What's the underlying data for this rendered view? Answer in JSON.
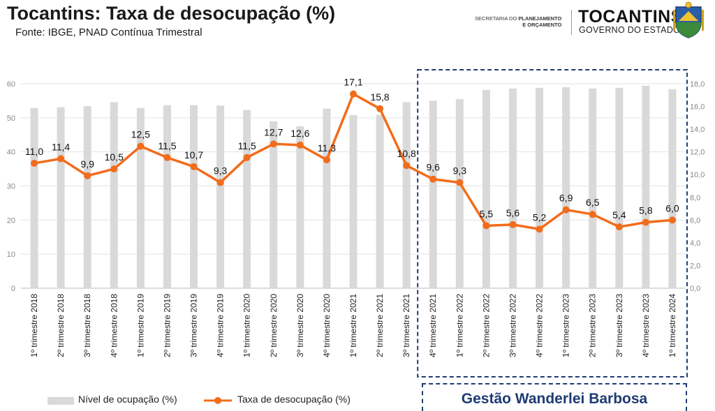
{
  "header": {
    "title": "Tocantins: Taxa de desocupação (%)",
    "subtitle": "Fonte: IBGE, PNAD Contínua Trimestral",
    "secretaria_line1_prefix": "SECRETARIA DO ",
    "secretaria_line1_bold": "PLANEJAMENTO",
    "secretaria_line2": "E ORÇAMENTO",
    "state_name": "TOCANTINS",
    "state_gov": "GOVERNO DO ESTADO"
  },
  "highlight": {
    "label": "Gestão Wanderlei Barbosa"
  },
  "colors": {
    "bar": "#d9d9d9",
    "line": "#f26c1c",
    "highlight": "#1f3b73",
    "grid": "#e3e3e3"
  },
  "chart_data": {
    "type": "bar",
    "categories": [
      "1º trimestre 2018",
      "2º trimestre 2018",
      "3º trimestre 2018",
      "4º trimestre 2018",
      "1º trimestre 2019",
      "2º trimestre 2019",
      "3º trimestre 2019",
      "4º trimestre 2019",
      "1º trimestre 2020",
      "2º trimestre 2020",
      "3º trimestre 2020",
      "4º trimestre 2020",
      "1º trimestre 2021",
      "2º trimestre 2021",
      "3º trimestre 2021",
      "4º trimestre 2021",
      "1º trimestre 2022",
      "2º trimestre 2022",
      "3º trimestre 2022",
      "4º trimestre 2022",
      "1º trimestre 2023",
      "2º trimestre 2023",
      "3º trimestre 2023",
      "4º trimestre 2023",
      "1º trimestre 2024"
    ],
    "series": [
      {
        "name": "Nível de ocupação (%)",
        "type": "bar",
        "axis": "left",
        "values": [
          52.9,
          53.1,
          53.4,
          54.6,
          52.9,
          53.7,
          53.7,
          53.6,
          52.3,
          49.0,
          47.5,
          52.7,
          50.8,
          50.9,
          54.6,
          55.0,
          55.5,
          58.2,
          58.6,
          58.8,
          59.0,
          58.6,
          58.8,
          59.4,
          58.4
        ]
      },
      {
        "name": "Taxa de desocupação (%)",
        "type": "line",
        "axis": "right",
        "values": [
          11.0,
          11.4,
          9.9,
          10.5,
          12.5,
          11.5,
          10.7,
          9.3,
          11.5,
          12.7,
          12.6,
          11.3,
          17.1,
          15.8,
          10.8,
          9.6,
          9.3,
          5.5,
          5.6,
          5.2,
          6.9,
          6.5,
          5.4,
          5.8,
          6.0
        ],
        "labels": [
          "11,0",
          "11,4",
          "9,9",
          "10,5",
          "12,5",
          "11,5",
          "10,7",
          "9,3",
          "11,5",
          "12,7",
          "12,6",
          "11,3",
          "17,1",
          "15,8",
          "10,8",
          "9,6",
          "9,3",
          "5,5",
          "5,6",
          "5,2",
          "6,9",
          "6,5",
          "5,4",
          "5,8",
          "6,0"
        ]
      }
    ],
    "y_left": {
      "ylim": [
        0,
        60
      ],
      "ticks": [
        "0",
        "10",
        "20",
        "30",
        "40",
        "50",
        "60"
      ]
    },
    "y_right": {
      "ylim": [
        0,
        18
      ],
      "ticks": [
        "0,0",
        "2,0",
        "4,0",
        "6,0",
        "8,0",
        "10,0",
        "12,0",
        "14,0",
        "16,0",
        "18,0"
      ]
    },
    "highlight_start_index": 15,
    "grid": true,
    "legend_position": "bottom-left"
  }
}
